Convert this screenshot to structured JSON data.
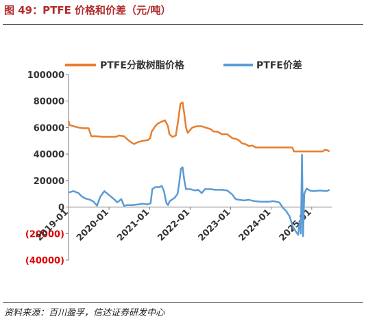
{
  "figure": {
    "title": "图 49：PTFE 价格和价差（元/吨）",
    "source": "资料来源：百川盈孚，信达证券研发中心"
  },
  "colors": {
    "orange": "#e87d2e",
    "blue": "#5b9bd5",
    "negative_label": "#e00000",
    "axis": "#777777",
    "text": "#333333"
  },
  "chart_data": {
    "type": "line",
    "title": "",
    "xlabel": "",
    "ylabel": "",
    "ylim": [
      -40000,
      100000
    ],
    "yticks": [
      100000,
      80000,
      60000,
      40000,
      20000,
      0,
      -20000,
      -40000
    ],
    "ytick_labels": [
      "100000",
      "80000",
      "60000",
      "40000",
      "20000",
      "0",
      "(20000)",
      "(40000)"
    ],
    "xlim": [
      "2019-01-01",
      "2025-06-30"
    ],
    "xticks": [
      "2019-01",
      "2020-01",
      "2021-01",
      "2022-01",
      "2023-01",
      "2024-01",
      "2025-01"
    ],
    "grid": false,
    "legend": "top",
    "series": [
      {
        "name": "PTFE分散树脂价格",
        "color": "#e87d2e",
        "points": [
          [
            "2019-01-01",
            65000
          ],
          [
            "2019-01-10",
            62000
          ],
          [
            "2019-02-15",
            61000
          ],
          [
            "2019-04-01",
            60000
          ],
          [
            "2019-05-15",
            59500
          ],
          [
            "2019-07-01",
            59500
          ],
          [
            "2019-07-25",
            53500
          ],
          [
            "2019-09-01",
            53500
          ],
          [
            "2019-11-01",
            53000
          ],
          [
            "2020-01-01",
            53000
          ],
          [
            "2020-03-01",
            53000
          ],
          [
            "2020-04-01",
            54000
          ],
          [
            "2020-05-15",
            53500
          ],
          [
            "2020-06-15",
            51000
          ],
          [
            "2020-07-15",
            49000
          ],
          [
            "2020-08-15",
            47500
          ],
          [
            "2020-09-15",
            49000
          ],
          [
            "2020-11-01",
            50000
          ],
          [
            "2020-12-15",
            50500
          ],
          [
            "2021-01-05",
            52000
          ],
          [
            "2021-01-20",
            57000
          ],
          [
            "2021-02-20",
            61000
          ],
          [
            "2021-03-15",
            63000
          ],
          [
            "2021-04-20",
            64500
          ],
          [
            "2021-05-20",
            65500
          ],
          [
            "2021-06-15",
            61000
          ],
          [
            "2021-06-28",
            55000
          ],
          [
            "2021-07-25",
            53000
          ],
          [
            "2021-08-25",
            54000
          ],
          [
            "2021-09-15",
            65000
          ],
          [
            "2021-10-05",
            78000
          ],
          [
            "2021-10-25",
            79000
          ],
          [
            "2021-11-10",
            70000
          ],
          [
            "2021-11-25",
            60000
          ],
          [
            "2021-12-10",
            56000
          ],
          [
            "2022-01-20",
            60000
          ],
          [
            "2022-03-01",
            61000
          ],
          [
            "2022-04-15",
            61000
          ],
          [
            "2022-05-20",
            60000
          ],
          [
            "2022-07-01",
            59000
          ],
          [
            "2022-08-01",
            57000
          ],
          [
            "2022-09-01",
            57000
          ],
          [
            "2022-10-15",
            55000
          ],
          [
            "2022-12-01",
            55000
          ],
          [
            "2023-01-15",
            52000
          ],
          [
            "2023-02-15",
            51500
          ],
          [
            "2023-03-15",
            50500
          ],
          [
            "2023-04-15",
            48000
          ],
          [
            "2023-05-15",
            47500
          ],
          [
            "2023-06-15",
            46000
          ],
          [
            "2023-07-15",
            46500
          ],
          [
            "2023-08-15",
            45000
          ],
          [
            "2023-10-15",
            45000
          ],
          [
            "2023-12-15",
            45000
          ],
          [
            "2024-02-15",
            45000
          ],
          [
            "2024-04-15",
            45000
          ],
          [
            "2024-06-15",
            45000
          ],
          [
            "2024-07-10",
            45000
          ],
          [
            "2024-07-25",
            42000
          ],
          [
            "2024-10-15",
            42000
          ],
          [
            "2025-01-15",
            42000
          ],
          [
            "2025-03-15",
            42000
          ],
          [
            "2025-04-10",
            42000
          ],
          [
            "2025-04-25",
            43000
          ],
          [
            "2025-05-15",
            43000
          ],
          [
            "2025-06-10",
            42000
          ]
        ]
      },
      {
        "name": "PTFE价差",
        "color": "#5b9bd5",
        "points": [
          [
            "2019-01-01",
            11000
          ],
          [
            "2019-02-15",
            12000
          ],
          [
            "2019-04-01",
            10500
          ],
          [
            "2019-05-01",
            8000
          ],
          [
            "2019-06-01",
            6500
          ],
          [
            "2019-07-15",
            5500
          ],
          [
            "2019-08-15",
            4000
          ],
          [
            "2019-09-15",
            1000
          ],
          [
            "2019-10-15",
            8000
          ],
          [
            "2019-11-20",
            12000
          ],
          [
            "2020-01-01",
            9000
          ],
          [
            "2020-02-15",
            6000
          ],
          [
            "2020-03-15",
            3500
          ],
          [
            "2020-04-20",
            6000
          ],
          [
            "2020-05-15",
            1000
          ],
          [
            "2020-06-15",
            1500
          ],
          [
            "2020-08-01",
            1500
          ],
          [
            "2020-09-15",
            2000
          ],
          [
            "2020-11-01",
            2500
          ],
          [
            "2020-12-15",
            2000
          ],
          [
            "2021-01-10",
            3000
          ],
          [
            "2021-01-25",
            13500
          ],
          [
            "2021-02-20",
            15000
          ],
          [
            "2021-04-01",
            15000
          ],
          [
            "2021-04-20",
            16000
          ],
          [
            "2021-05-10",
            12000
          ],
          [
            "2021-06-01",
            3000
          ],
          [
            "2021-06-15",
            1500
          ],
          [
            "2021-07-01",
            4500
          ],
          [
            "2021-08-15",
            7000
          ],
          [
            "2021-09-10",
            10000
          ],
          [
            "2021-09-25",
            18500
          ],
          [
            "2021-10-10",
            29000
          ],
          [
            "2021-10-25",
            30000
          ],
          [
            "2021-11-10",
            20000
          ],
          [
            "2021-11-25",
            13500
          ],
          [
            "2022-01-01",
            13500
          ],
          [
            "2022-02-15",
            12500
          ],
          [
            "2022-03-15",
            13000
          ],
          [
            "2022-04-15",
            10500
          ],
          [
            "2022-05-15",
            13500
          ],
          [
            "2022-07-01",
            13500
          ],
          [
            "2022-08-15",
            13000
          ],
          [
            "2022-10-15",
            13000
          ],
          [
            "2022-12-01",
            12500
          ],
          [
            "2023-01-15",
            9500
          ],
          [
            "2023-02-15",
            6000
          ],
          [
            "2023-03-15",
            5500
          ],
          [
            "2023-05-01",
            5000
          ],
          [
            "2023-06-15",
            5500
          ],
          [
            "2023-08-01",
            4500
          ],
          [
            "2023-10-01",
            4000
          ],
          [
            "2023-12-15",
            4000
          ],
          [
            "2024-01-15",
            4500
          ],
          [
            "2024-02-15",
            4000
          ],
          [
            "2024-03-15",
            3500
          ],
          [
            "2024-04-15",
            -500
          ],
          [
            "2024-05-15",
            -3000
          ],
          [
            "2024-06-15",
            -7000
          ],
          [
            "2024-07-15",
            -15000
          ],
          [
            "2024-08-15",
            -19000
          ],
          [
            "2024-09-01",
            -21000
          ],
          [
            "2024-09-15",
            -10000
          ],
          [
            "2024-09-25",
            -20000
          ],
          [
            "2024-10-05",
            39500
          ],
          [
            "2024-10-15",
            -22000
          ],
          [
            "2024-10-25",
            10000
          ],
          [
            "2024-11-15",
            14000
          ],
          [
            "2024-12-15",
            12500
          ],
          [
            "2025-01-15",
            12000
          ],
          [
            "2025-03-15",
            12500
          ],
          [
            "2025-05-15",
            12000
          ],
          [
            "2025-06-10",
            13000
          ]
        ]
      }
    ]
  }
}
